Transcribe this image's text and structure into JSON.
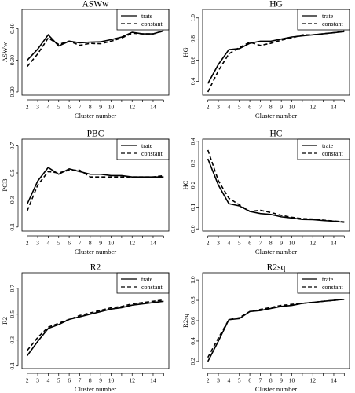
{
  "chart_data": [
    {
      "type": "line",
      "title": "ASWw",
      "xlabel": "Cluster number",
      "ylabel": "ASWw",
      "x": [
        2,
        3,
        4,
        5,
        6,
        7,
        8,
        9,
        10,
        11,
        12,
        13,
        14,
        15
      ],
      "xticks": [
        2,
        3,
        4,
        5,
        6,
        7,
        8,
        9,
        10,
        12,
        14
      ],
      "ylim": [
        0.19,
        0.46
      ],
      "yticks": [
        0.2,
        0.3,
        0.4
      ],
      "ytick_labels": [
        "0.20",
        "0.30",
        "0.40"
      ],
      "series": [
        {
          "name": "trate",
          "style": "solid",
          "values": [
            0.3,
            0.335,
            0.38,
            0.345,
            0.36,
            0.355,
            0.357,
            0.358,
            0.365,
            0.373,
            0.388,
            0.383,
            0.383,
            0.393
          ]
        },
        {
          "name": "constant",
          "style": "dashed",
          "values": [
            0.28,
            0.32,
            0.37,
            0.35,
            0.36,
            0.347,
            0.353,
            0.352,
            0.36,
            0.37,
            0.385,
            0.383,
            0.383,
            0.392
          ]
        }
      ],
      "legend": "top-right"
    },
    {
      "type": "line",
      "title": "HG",
      "xlabel": "Cluster number",
      "ylabel": "HG",
      "x": [
        2,
        3,
        4,
        5,
        6,
        7,
        8,
        9,
        10,
        11,
        12,
        13,
        14,
        15
      ],
      "xticks": [
        2,
        3,
        4,
        5,
        6,
        7,
        8,
        9,
        10,
        12,
        14
      ],
      "ylim": [
        0.27,
        1.08
      ],
      "yticks": [
        0.4,
        0.6,
        0.8,
        1.0
      ],
      "ytick_labels": [
        "0.4",
        "0.6",
        "0.8",
        "1.0"
      ],
      "series": [
        {
          "name": "trate",
          "style": "solid",
          "values": [
            0.38,
            0.56,
            0.7,
            0.71,
            0.76,
            0.78,
            0.78,
            0.8,
            0.82,
            0.83,
            0.84,
            0.85,
            0.86,
            0.87
          ]
        },
        {
          "name": "constant",
          "style": "dashed",
          "values": [
            0.3,
            0.5,
            0.66,
            0.72,
            0.77,
            0.74,
            0.76,
            0.79,
            0.81,
            0.84,
            0.84,
            0.85,
            0.86,
            0.88
          ]
        }
      ],
      "legend": "top-right"
    },
    {
      "type": "line",
      "title": "PBC",
      "xlabel": "Cluster number",
      "ylabel": "PCB",
      "x": [
        2,
        3,
        4,
        5,
        6,
        7,
        8,
        9,
        10,
        11,
        12,
        13,
        14,
        15
      ],
      "xticks": [
        2,
        3,
        4,
        5,
        6,
        7,
        8,
        9,
        10,
        12,
        14
      ],
      "ylim": [
        0.07,
        0.75
      ],
      "yticks": [
        0.1,
        0.3,
        0.5,
        0.7
      ],
      "ytick_labels": [
        "0.1",
        "0.3",
        "0.5",
        "0.7"
      ],
      "series": [
        {
          "name": "trate",
          "style": "solid",
          "values": [
            0.27,
            0.44,
            0.54,
            0.49,
            0.53,
            0.51,
            0.49,
            0.49,
            0.48,
            0.48,
            0.47,
            0.47,
            0.47,
            0.47
          ]
        },
        {
          "name": "constant",
          "style": "dashed",
          "values": [
            0.22,
            0.41,
            0.51,
            0.5,
            0.52,
            0.52,
            0.47,
            0.47,
            0.47,
            0.47,
            0.47,
            0.47,
            0.47,
            0.48
          ]
        }
      ],
      "legend": "top-right"
    },
    {
      "type": "line",
      "title": "HC",
      "xlabel": "Cluster number",
      "ylabel": "HC",
      "x": [
        2,
        3,
        4,
        5,
        6,
        7,
        8,
        9,
        10,
        11,
        12,
        13,
        14,
        15
      ],
      "xticks": [
        2,
        3,
        4,
        5,
        6,
        7,
        8,
        9,
        10,
        12,
        14
      ],
      "ylim": [
        -0.01,
        0.41
      ],
      "yticks": [
        0.0,
        0.1,
        0.2,
        0.3,
        0.4
      ],
      "ytick_labels": [
        "0.0",
        "0.1",
        "0.2",
        "0.3",
        "0.4"
      ],
      "series": [
        {
          "name": "trate",
          "style": "solid",
          "values": [
            0.32,
            0.2,
            0.115,
            0.105,
            0.08,
            0.07,
            0.066,
            0.055,
            0.05,
            0.043,
            0.042,
            0.038,
            0.035,
            0.03
          ]
        },
        {
          "name": "constant",
          "style": "dashed",
          "values": [
            0.36,
            0.22,
            0.14,
            0.11,
            0.08,
            0.085,
            0.075,
            0.062,
            0.053,
            0.047,
            0.045,
            0.04,
            0.036,
            0.032
          ]
        }
      ],
      "legend": "top-right"
    },
    {
      "type": "line",
      "title": "R2",
      "xlabel": "Cluster number",
      "ylabel": "R2",
      "x": [
        2,
        3,
        4,
        5,
        6,
        7,
        8,
        9,
        10,
        11,
        12,
        13,
        14,
        15
      ],
      "xticks": [
        2,
        3,
        4,
        5,
        6,
        7,
        8,
        9,
        10,
        12,
        14
      ],
      "ylim": [
        0.08,
        0.82
      ],
      "yticks": [
        0.1,
        0.3,
        0.5,
        0.7
      ],
      "ytick_labels": [
        "0.1",
        "0.3",
        "0.5",
        "0.7"
      ],
      "series": [
        {
          "name": "trate",
          "style": "solid",
          "values": [
            0.18,
            0.29,
            0.39,
            0.42,
            0.46,
            0.48,
            0.5,
            0.52,
            0.54,
            0.55,
            0.57,
            0.58,
            0.59,
            0.6
          ]
        },
        {
          "name": "constant",
          "style": "dashed",
          "values": [
            0.22,
            0.32,
            0.4,
            0.43,
            0.46,
            0.49,
            0.51,
            0.53,
            0.55,
            0.56,
            0.58,
            0.59,
            0.6,
            0.61
          ]
        }
      ],
      "legend": "top-right"
    },
    {
      "type": "line",
      "title": "R2sq",
      "xlabel": "Cluster number",
      "ylabel": "R2sq",
      "x": [
        2,
        3,
        4,
        5,
        6,
        7,
        8,
        9,
        10,
        11,
        12,
        13,
        14,
        15
      ],
      "xticks": [
        2,
        3,
        4,
        5,
        6,
        7,
        8,
        9,
        10,
        12,
        14
      ],
      "ylim": [
        0.13,
        1.07
      ],
      "yticks": [
        0.2,
        0.4,
        0.6,
        0.8,
        1.0
      ],
      "ytick_labels": [
        "0.2",
        "0.4",
        "0.6",
        "0.8",
        "1.0"
      ],
      "series": [
        {
          "name": "trate",
          "style": "solid",
          "values": [
            0.2,
            0.4,
            0.61,
            0.62,
            0.69,
            0.7,
            0.72,
            0.74,
            0.75,
            0.77,
            0.78,
            0.79,
            0.8,
            0.81
          ]
        },
        {
          "name": "constant",
          "style": "dashed",
          "values": [
            0.24,
            0.43,
            0.61,
            0.63,
            0.69,
            0.71,
            0.73,
            0.75,
            0.76,
            0.77,
            0.78,
            0.79,
            0.8,
            0.81
          ]
        }
      ],
      "legend": "top-right"
    }
  ]
}
